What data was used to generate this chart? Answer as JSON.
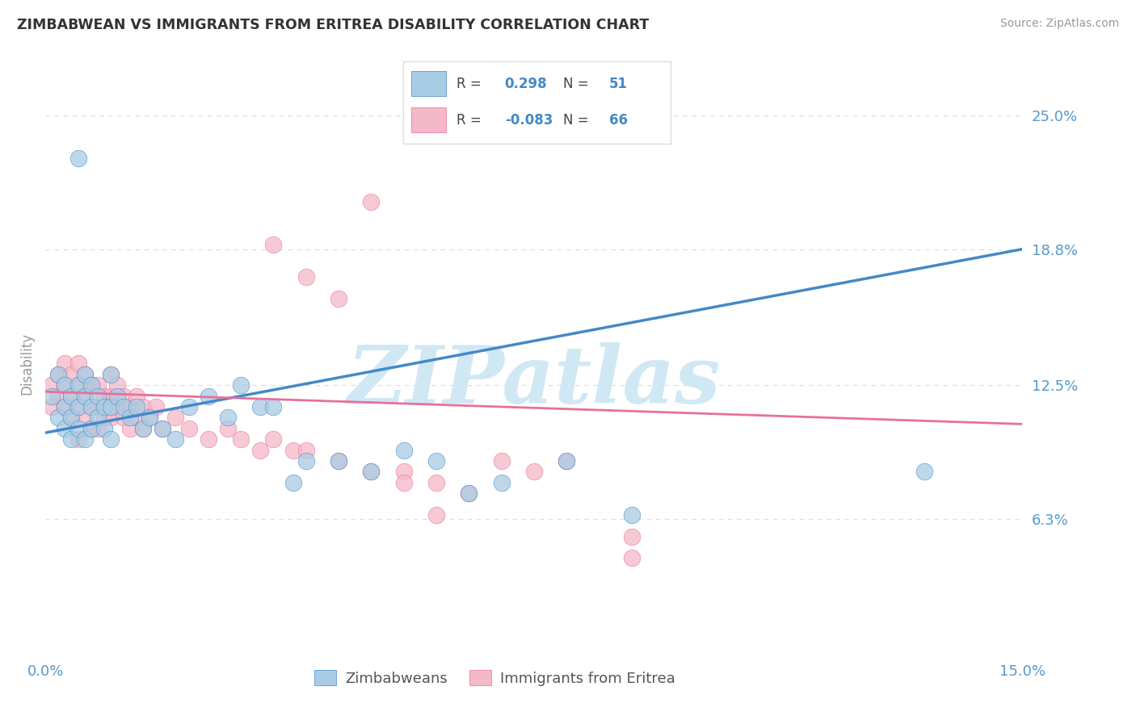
{
  "title": "ZIMBABWEAN VS IMMIGRANTS FROM ERITREA DISABILITY CORRELATION CHART",
  "source_text": "Source: ZipAtlas.com",
  "ylabel": "Disability",
  "xmin": 0.0,
  "xmax": 0.15,
  "ymin": 0.0,
  "ymax": 0.27,
  "blue_R": 0.298,
  "blue_N": 51,
  "pink_R": -0.083,
  "pink_N": 66,
  "blue_color": "#a8cce4",
  "pink_color": "#f4b8c8",
  "blue_line_color": "#4489c8",
  "pink_line_color": "#e8709a",
  "watermark": "ZIPatlas",
  "watermark_color": "#d0e8f4",
  "legend_label_blue": "Zimbabweans",
  "legend_label_pink": "Immigrants from Eritrea",
  "background_color": "#ffffff",
  "title_color": "#333333",
  "tick_label_color": "#5599cc",
  "grid_color": "#cccccc",
  "blue_trend_x": [
    0.0,
    0.15
  ],
  "blue_trend_y": [
    0.103,
    0.188
  ],
  "pink_trend_x": [
    0.0,
    0.15
  ],
  "pink_trend_y": [
    0.122,
    0.107
  ],
  "blue_scatter_x": [
    0.001,
    0.002,
    0.002,
    0.003,
    0.003,
    0.003,
    0.004,
    0.004,
    0.004,
    0.005,
    0.005,
    0.005,
    0.006,
    0.006,
    0.006,
    0.007,
    0.007,
    0.007,
    0.008,
    0.008,
    0.009,
    0.009,
    0.01,
    0.01,
    0.01,
    0.011,
    0.012,
    0.013,
    0.014,
    0.015,
    0.016,
    0.018,
    0.02,
    0.022,
    0.025,
    0.028,
    0.03,
    0.033,
    0.035,
    0.038,
    0.04,
    0.045,
    0.05,
    0.055,
    0.06,
    0.065,
    0.07,
    0.08,
    0.09,
    0.135,
    0.005
  ],
  "blue_scatter_y": [
    0.12,
    0.13,
    0.11,
    0.125,
    0.115,
    0.105,
    0.12,
    0.11,
    0.1,
    0.125,
    0.115,
    0.105,
    0.13,
    0.12,
    0.1,
    0.125,
    0.115,
    0.105,
    0.12,
    0.11,
    0.115,
    0.105,
    0.13,
    0.115,
    0.1,
    0.12,
    0.115,
    0.11,
    0.115,
    0.105,
    0.11,
    0.105,
    0.1,
    0.115,
    0.12,
    0.11,
    0.125,
    0.115,
    0.115,
    0.08,
    0.09,
    0.09,
    0.085,
    0.095,
    0.09,
    0.075,
    0.08,
    0.09,
    0.065,
    0.085,
    0.23
  ],
  "pink_scatter_x": [
    0.001,
    0.001,
    0.002,
    0.002,
    0.003,
    0.003,
    0.003,
    0.004,
    0.004,
    0.004,
    0.005,
    0.005,
    0.005,
    0.005,
    0.006,
    0.006,
    0.006,
    0.007,
    0.007,
    0.007,
    0.008,
    0.008,
    0.008,
    0.009,
    0.009,
    0.01,
    0.01,
    0.01,
    0.011,
    0.011,
    0.012,
    0.012,
    0.013,
    0.013,
    0.014,
    0.014,
    0.015,
    0.015,
    0.016,
    0.017,
    0.018,
    0.02,
    0.022,
    0.025,
    0.028,
    0.03,
    0.033,
    0.035,
    0.038,
    0.04,
    0.045,
    0.05,
    0.055,
    0.06,
    0.065,
    0.07,
    0.075,
    0.08,
    0.035,
    0.04,
    0.045,
    0.05,
    0.055,
    0.06,
    0.09,
    0.09
  ],
  "pink_scatter_y": [
    0.125,
    0.115,
    0.13,
    0.12,
    0.135,
    0.125,
    0.115,
    0.13,
    0.12,
    0.11,
    0.135,
    0.125,
    0.115,
    0.1,
    0.13,
    0.12,
    0.11,
    0.125,
    0.115,
    0.105,
    0.125,
    0.115,
    0.105,
    0.12,
    0.11,
    0.13,
    0.12,
    0.11,
    0.125,
    0.115,
    0.12,
    0.11,
    0.115,
    0.105,
    0.12,
    0.11,
    0.115,
    0.105,
    0.11,
    0.115,
    0.105,
    0.11,
    0.105,
    0.1,
    0.105,
    0.1,
    0.095,
    0.1,
    0.095,
    0.095,
    0.09,
    0.085,
    0.085,
    0.08,
    0.075,
    0.09,
    0.085,
    0.09,
    0.19,
    0.175,
    0.165,
    0.21,
    0.08,
    0.065,
    0.055,
    0.045
  ]
}
